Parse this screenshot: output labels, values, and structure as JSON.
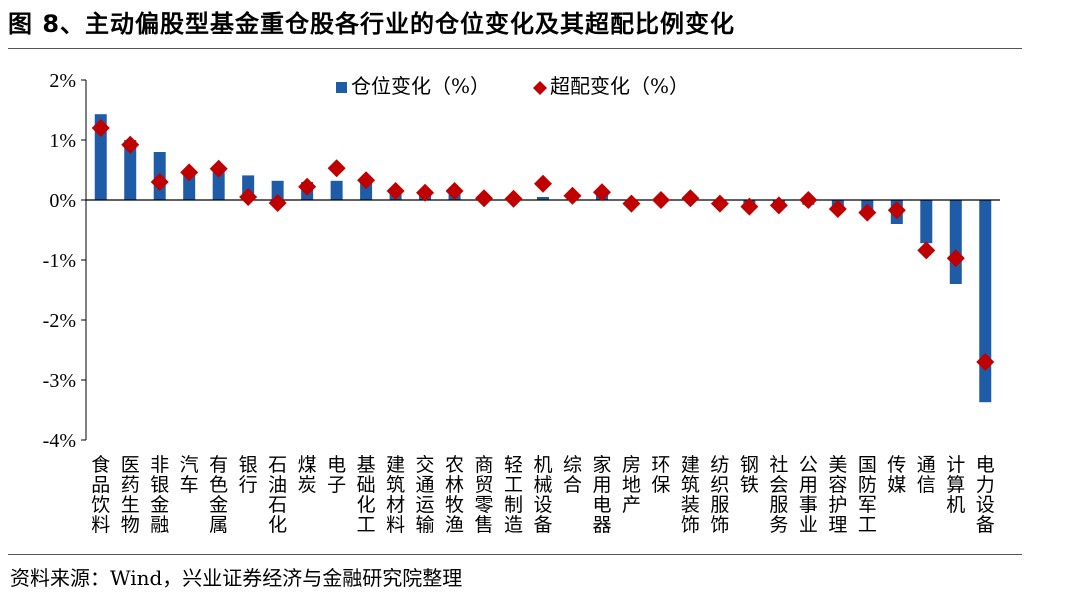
{
  "title": "图 8、主动偏股型基金重仓股各行业的仓位变化及其超配比例变化",
  "source": "资料来源：Wind，兴业证券经济与金融研究院整理",
  "colors": {
    "bar": "#1F5CA8",
    "marker": "#C00000"
  },
  "chart_data": {
    "type": "bar",
    "categories": [
      "食品饮料",
      "医药生物",
      "非银金融",
      "汽车",
      "有色金属",
      "银行",
      "石油石化",
      "煤炭",
      "电子",
      "基础化工",
      "建筑材料",
      "交通运输",
      "农林牧渔",
      "商贸零售",
      "轻工制造",
      "机械设备",
      "综合",
      "家用电器",
      "房地产",
      "环保",
      "建筑装饰",
      "纺织服饰",
      "钢铁",
      "社会服务",
      "公用事业",
      "美容护理",
      "国防军工",
      "传媒",
      "通信",
      "计算机",
      "电力设备"
    ],
    "series": [
      {
        "name": "仓位变化（%）",
        "type": "bar",
        "values": [
          1.43,
          1.0,
          0.8,
          0.48,
          0.52,
          0.41,
          0.32,
          0.3,
          0.32,
          0.3,
          0.12,
          0.12,
          0.12,
          0.05,
          0.03,
          0.05,
          0.05,
          0.1,
          -0.05,
          0.0,
          0.03,
          -0.05,
          -0.1,
          -0.08,
          -0.08,
          -0.15,
          -0.22,
          -0.4,
          -0.72,
          -1.4,
          -3.37
        ]
      },
      {
        "name": "超配变化（%）",
        "type": "scatter",
        "values": [
          1.2,
          0.92,
          0.3,
          0.46,
          0.52,
          0.05,
          -0.05,
          0.22,
          0.53,
          0.33,
          0.15,
          0.12,
          0.15,
          0.03,
          0.02,
          0.27,
          0.07,
          0.13,
          -0.06,
          0.0,
          0.03,
          -0.06,
          -0.11,
          -0.09,
          0.0,
          -0.15,
          -0.21,
          -0.17,
          -0.84,
          -0.97,
          -2.7
        ]
      }
    ],
    "ylim": [
      -4,
      2
    ],
    "yticks": [
      -4,
      -3,
      -2,
      -1,
      0,
      1,
      2
    ],
    "ytick_labels": [
      "-4%",
      "-3%",
      "-2%",
      "-1%",
      "0%",
      "1%",
      "2%"
    ],
    "legend_position": "top-center",
    "grid": false
  }
}
